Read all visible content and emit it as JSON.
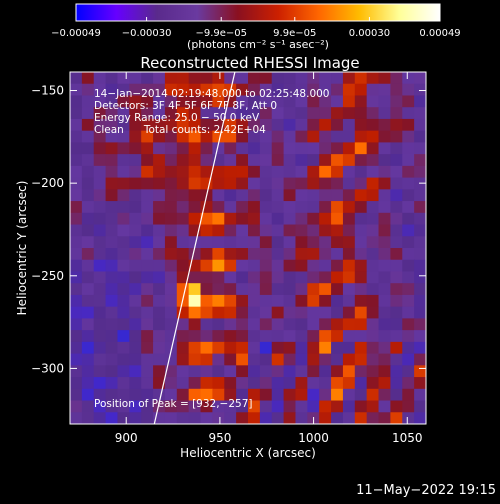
{
  "chart_data": {
    "type": "heatmap",
    "title": "Reconstructed RHESSI Image",
    "xlabel": "Heliocentric X (arcsec)",
    "ylabel": "Heliocentric Y (arcsec)",
    "xlim": [
      870,
      1060
    ],
    "ylim": [
      -330,
      -140
    ],
    "x_ticks": [
      900,
      950,
      1000,
      1050
    ],
    "y_ticks": [
      -300,
      -250,
      -200,
      -150
    ],
    "colorbar": {
      "min": -0.00049,
      "max": 0.00049,
      "ticks": [
        {
          "value": -0.00049,
          "label": "−0.00049"
        },
        {
          "value": -0.0003,
          "label": "−0.00030"
        },
        {
          "value": -9.9e-05,
          "label": "−9.9e−05"
        },
        {
          "value": 9.9e-05,
          "label": "9.9e−05"
        },
        {
          "value": 0.0003,
          "label": "0.00030"
        },
        {
          "value": 0.00049,
          "label": "0.00049"
        }
      ],
      "unit_label": "(photons cm⁻² s⁻¹ asec⁻²)",
      "colors": [
        "#0000ff",
        "#6600ff",
        "#5a2a8c",
        "#6a3aa0",
        "#8a1020",
        "#cc2000",
        "#ff6600",
        "#ffbb00",
        "#ffff99",
        "#ffffff"
      ]
    },
    "annotations": {
      "line1": "14−Jan−2014 02:19:48.000 to 02:25:48.000",
      "line2": "Detectors: 3F 4F 5F 6F 7F 8F, Att 0",
      "line3": "Energy Range: 25.0 − 50.0 keV",
      "line4": "Clean      Total counts: 2.42E+04",
      "peak": "Position of Peak = [932,−257]"
    },
    "peak_position": [
      932,
      -257
    ],
    "limb_line": [
      [
        915,
        -330
      ],
      [
        958,
        -140
      ]
    ],
    "image_grid": {
      "x_start": 870,
      "x_end": 1060,
      "y_start": -140,
      "y_end": -330,
      "rows": 30,
      "cols": 30
    }
  },
  "footer": {
    "date": "11−May−2022 19:15"
  }
}
